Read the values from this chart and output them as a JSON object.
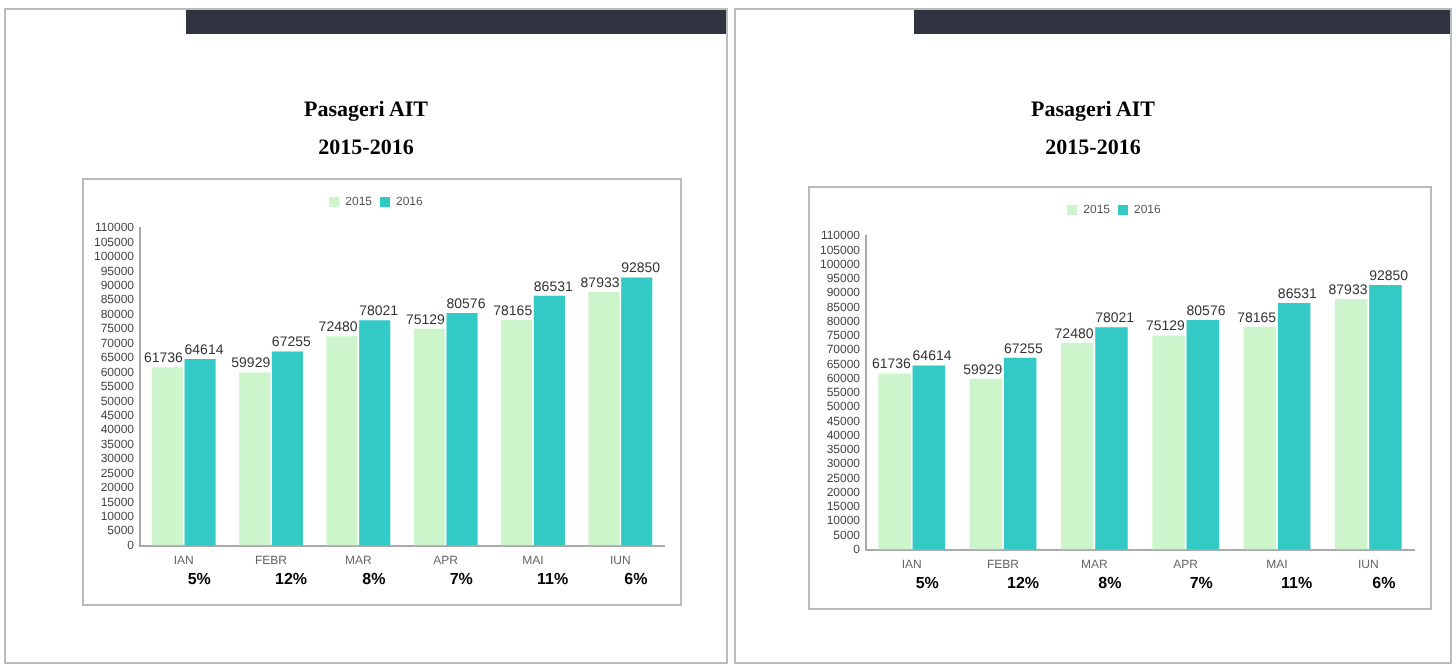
{
  "chart_data": [
    {
      "type": "bar",
      "title": "Pasageri AIT",
      "subtitle": "2015-2016",
      "categories": [
        "IAN",
        "FEBR",
        "MAR",
        "APR",
        "MAI",
        "IUN"
      ],
      "series": [
        {
          "name": "2015",
          "color": "#ccf5cc",
          "values": [
            61736,
            59929,
            72480,
            75129,
            78165,
            87933
          ]
        },
        {
          "name": "2016",
          "color": "#33c9c4",
          "values": [
            64614,
            67255,
            78021,
            80576,
            86531,
            92850
          ]
        }
      ],
      "ylim": [
        0,
        110000
      ],
      "yticks": [
        0,
        5000,
        10000,
        15000,
        20000,
        25000,
        30000,
        35000,
        40000,
        45000,
        50000,
        55000,
        60000,
        65000,
        70000,
        75000,
        80000,
        85000,
        90000,
        95000,
        100000,
        105000,
        110000
      ],
      "grid": false,
      "legend": "top",
      "data_labels": true,
      "annotations": [
        "5%",
        "12%",
        "8%",
        "7%",
        "11%",
        "6%"
      ]
    },
    {
      "type": "bar",
      "title": "Pasageri AIT",
      "subtitle": "2015-2016",
      "categories": [
        "IAN",
        "FEBR",
        "MAR",
        "APR",
        "MAI",
        "IUN"
      ],
      "series": [
        {
          "name": "2015",
          "color": "#ccf5cc",
          "values": [
            61736,
            59929,
            72480,
            75129,
            78165,
            87933
          ]
        },
        {
          "name": "2016",
          "color": "#33c9c4",
          "values": [
            64614,
            67255,
            78021,
            80576,
            86531,
            92850
          ]
        }
      ],
      "ylim": [
        0,
        110000
      ],
      "yticks": [
        0,
        5000,
        10000,
        15000,
        20000,
        25000,
        30000,
        35000,
        40000,
        45000,
        50000,
        55000,
        60000,
        65000,
        70000,
        75000,
        80000,
        85000,
        90000,
        95000,
        100000,
        105000,
        110000
      ],
      "grid": false,
      "legend": "top",
      "data_labels": true,
      "annotations": [
        "5%",
        "12%",
        "8%",
        "7%",
        "11%",
        "6%"
      ]
    }
  ]
}
